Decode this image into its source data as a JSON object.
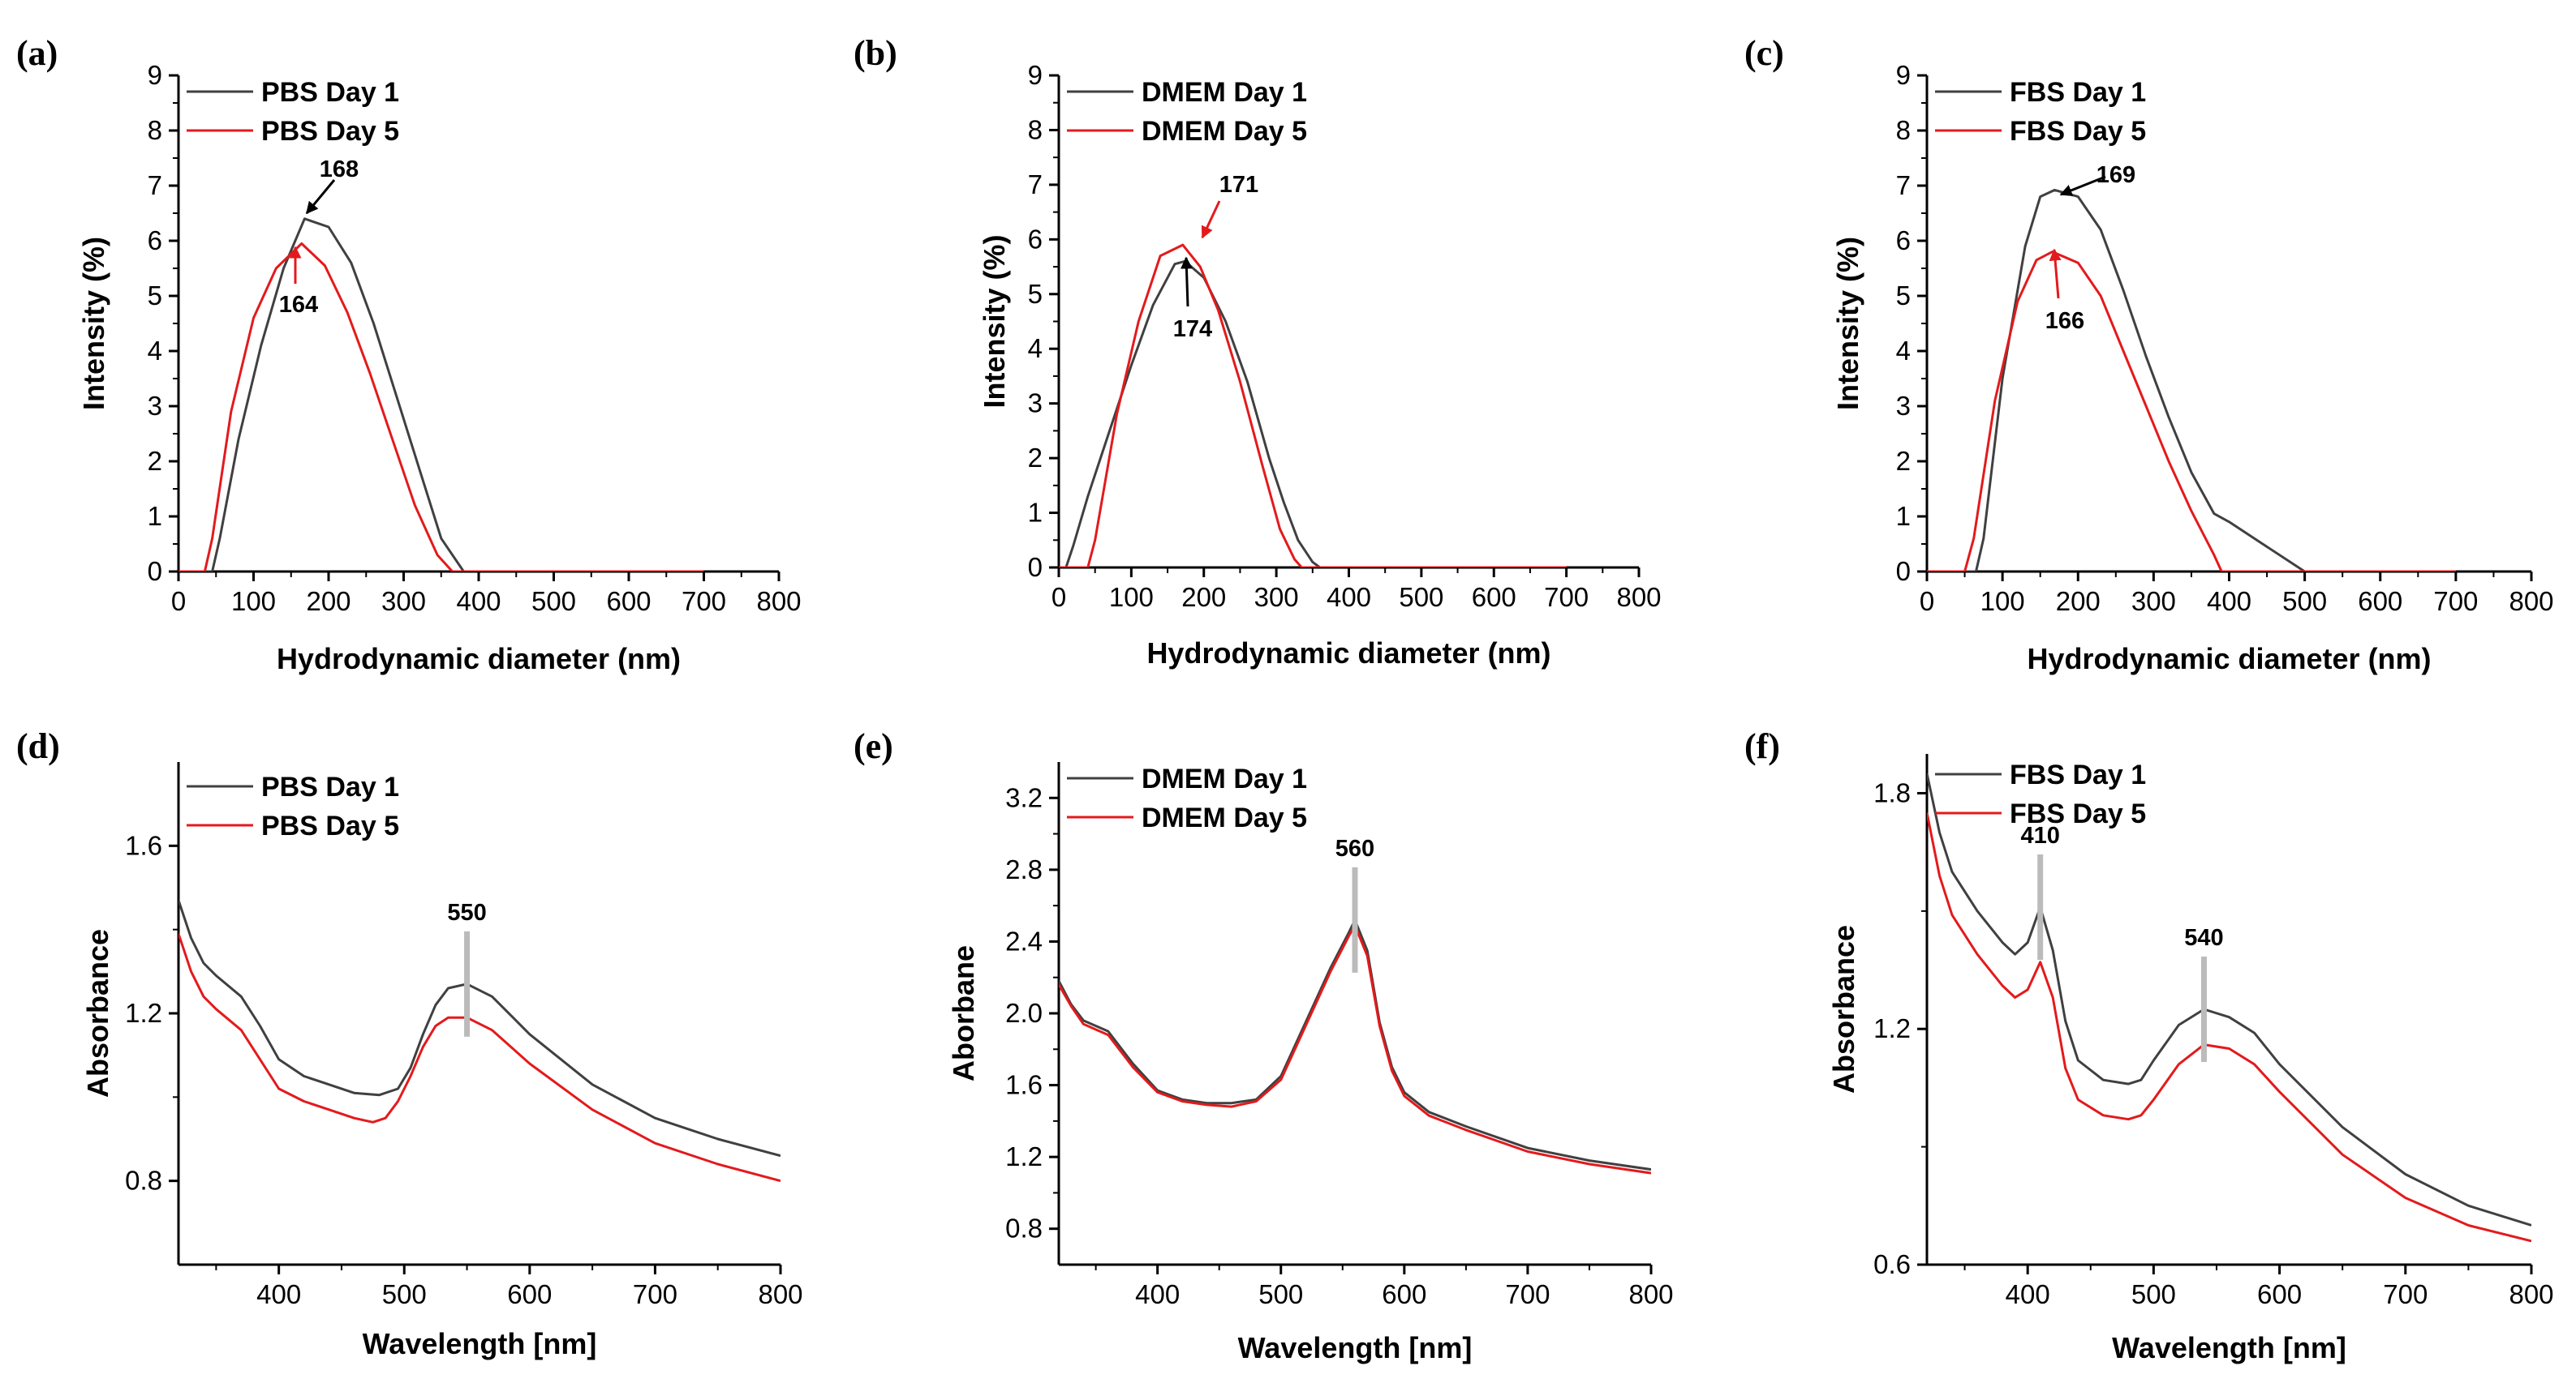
{
  "chart_data": [
    {
      "panel": "(a)",
      "type": "line",
      "xlabel": "Hydrodynamic diameter (nm)",
      "ylabel": "Intensity (%)",
      "xlim": [
        0,
        800
      ],
      "ylim": [
        0,
        9
      ],
      "xticks": [
        "0",
        "100",
        "200",
        "300",
        "400",
        "500",
        "600",
        "700",
        "800"
      ],
      "yticks": [
        "0",
        "1",
        "2",
        "3",
        "4",
        "5",
        "6",
        "7",
        "8",
        "9"
      ],
      "legend": "top-left",
      "series": [
        {
          "name": "PBS Day 1",
          "color": "#404040",
          "x": [
            0,
            45,
            55,
            80,
            110,
            140,
            168,
            200,
            230,
            260,
            290,
            320,
            350,
            380,
            395,
            450,
            550,
            700
          ],
          "y": [
            0,
            0,
            0.6,
            2.4,
            4.1,
            5.5,
            6.4,
            6.25,
            5.6,
            4.5,
            3.2,
            1.9,
            0.6,
            0,
            0,
            0,
            0,
            0
          ]
        },
        {
          "name": "PBS Day 5",
          "color": "#e31a1c",
          "x": [
            0,
            35,
            45,
            70,
            100,
            130,
            164,
            195,
            225,
            255,
            285,
            315,
            345,
            365,
            450,
            550,
            700
          ],
          "y": [
            0,
            0,
            0.6,
            2.9,
            4.6,
            5.5,
            5.95,
            5.55,
            4.7,
            3.6,
            2.4,
            1.2,
            0.3,
            0,
            0,
            0,
            0
          ]
        }
      ],
      "annotations": [
        {
          "text": "168",
          "series": 0,
          "x": 168,
          "y": 6.4
        },
        {
          "text": "164",
          "series": 1,
          "x": 164,
          "y": 5.95
        }
      ]
    },
    {
      "panel": "(b)",
      "type": "line",
      "xlabel": "Hydrodynamic diameter (nm)",
      "ylabel": "Intensity (%)",
      "xlim": [
        0,
        800
      ],
      "ylim": [
        0,
        9
      ],
      "xticks": [
        "0",
        "100",
        "200",
        "300",
        "400",
        "500",
        "600",
        "700",
        "800"
      ],
      "yticks": [
        "0",
        "1",
        "2",
        "3",
        "4",
        "5",
        "6",
        "7",
        "8",
        "9"
      ],
      "legend": "top-left",
      "series": [
        {
          "name": "DMEM Day 1",
          "color": "#404040",
          "x": [
            0,
            10,
            20,
            40,
            70,
            100,
            130,
            160,
            174,
            200,
            230,
            260,
            290,
            310,
            330,
            350,
            360,
            450,
            550,
            700
          ],
          "y": [
            0,
            0,
            0.4,
            1.3,
            2.5,
            3.7,
            4.8,
            5.55,
            5.6,
            5.3,
            4.5,
            3.4,
            2.0,
            1.2,
            0.5,
            0.1,
            0,
            0,
            0,
            0
          ]
        },
        {
          "name": "DMEM Day 5",
          "color": "#e31a1c",
          "x": [
            0,
            40,
            50,
            80,
            110,
            140,
            171,
            195,
            220,
            250,
            280,
            305,
            325,
            335,
            450,
            550,
            700
          ],
          "y": [
            0,
            0,
            0.5,
            2.8,
            4.5,
            5.7,
            5.9,
            5.5,
            4.7,
            3.4,
            1.9,
            0.7,
            0.15,
            0,
            0,
            0,
            0
          ]
        }
      ],
      "annotations": [
        {
          "text": "171",
          "series": 1,
          "x": 171,
          "y": 5.9
        },
        {
          "text": "174",
          "series": 0,
          "x": 174,
          "y": 5.6
        }
      ]
    },
    {
      "panel": "(c)",
      "type": "line",
      "xlabel": "Hydrodynamic diameter (nm)",
      "ylabel": "Intensity (%)",
      "xlim": [
        0,
        800
      ],
      "ylim": [
        0,
        9
      ],
      "xticks": [
        "0",
        "100",
        "200",
        "300",
        "400",
        "500",
        "600",
        "700",
        "800"
      ],
      "yticks": [
        "0",
        "1",
        "2",
        "3",
        "4",
        "5",
        "6",
        "7",
        "8",
        "9"
      ],
      "legend": "top-left",
      "series": [
        {
          "name": "FBS Day 1",
          "color": "#404040",
          "x": [
            0,
            65,
            75,
            100,
            130,
            150,
            169,
            200,
            230,
            260,
            290,
            320,
            350,
            380,
            400,
            500,
            550,
            700
          ],
          "y": [
            0,
            0,
            0.6,
            3.5,
            5.9,
            6.8,
            6.92,
            6.8,
            6.2,
            5.1,
            3.9,
            2.8,
            1.8,
            1.05,
            0.9,
            0,
            0,
            0
          ]
        },
        {
          "name": "FBS Day 5",
          "color": "#e31a1c",
          "x": [
            0,
            50,
            62,
            90,
            120,
            145,
            166,
            200,
            230,
            260,
            290,
            320,
            350,
            380,
            390,
            450,
            550,
            700
          ],
          "y": [
            0,
            0,
            0.6,
            3.1,
            4.9,
            5.65,
            5.8,
            5.6,
            5.0,
            4.0,
            3.0,
            2.0,
            1.1,
            0.3,
            0,
            0,
            0,
            0
          ]
        }
      ],
      "annotations": [
        {
          "text": "169",
          "series": 0,
          "x": 169,
          "y": 6.92
        },
        {
          "text": "166",
          "series": 1,
          "x": 166,
          "y": 5.8
        }
      ]
    },
    {
      "panel": "(d)",
      "type": "line",
      "xlabel": "Wavelength [nm]",
      "ylabel": "Absorbance",
      "xlim": [
        320,
        800
      ],
      "ylim": [
        0.6,
        1.8
      ],
      "xticks": [
        "400",
        "500",
        "600",
        "700",
        "800"
      ],
      "yticks": [
        "0.8",
        "1.2",
        "1.6"
      ],
      "legend": "top-left",
      "series": [
        {
          "name": "PBS Day 1",
          "color": "#404040",
          "x": [
            320,
            330,
            340,
            350,
            370,
            385,
            400,
            420,
            440,
            460,
            480,
            495,
            505,
            515,
            525,
            535,
            550,
            570,
            600,
            650,
            700,
            750,
            800
          ],
          "y": [
            1.47,
            1.38,
            1.32,
            1.29,
            1.24,
            1.17,
            1.09,
            1.05,
            1.03,
            1.01,
            1.005,
            1.02,
            1.07,
            1.15,
            1.22,
            1.26,
            1.27,
            1.24,
            1.15,
            1.03,
            0.95,
            0.9,
            0.86
          ]
        },
        {
          "name": "PBS Day 5",
          "color": "#e31a1c",
          "x": [
            320,
            330,
            340,
            350,
            370,
            385,
            400,
            420,
            440,
            460,
            475,
            485,
            495,
            505,
            515,
            525,
            535,
            550,
            570,
            600,
            650,
            700,
            750,
            800
          ],
          "y": [
            1.39,
            1.3,
            1.24,
            1.21,
            1.16,
            1.09,
            1.02,
            0.99,
            0.97,
            0.95,
            0.94,
            0.95,
            0.99,
            1.05,
            1.12,
            1.17,
            1.19,
            1.19,
            1.16,
            1.08,
            0.97,
            0.89,
            0.84,
            0.8
          ]
        }
      ],
      "annotations": [
        {
          "text": "550",
          "x": 550
        }
      ]
    },
    {
      "panel": "(e)",
      "type": "line",
      "xlabel": "Wavelength [nm]",
      "ylabel": "Aborbane",
      "xlim": [
        320,
        800
      ],
      "ylim": [
        0.6,
        3.4
      ],
      "xticks": [
        "400",
        "500",
        "600",
        "700",
        "800"
      ],
      "yticks": [
        "0.8",
        "1.2",
        "1.6",
        "2.0",
        "2.4",
        "2.8",
        "3.2"
      ],
      "legend": "top-left",
      "series": [
        {
          "name": "DMEM Day 1",
          "color": "#404040",
          "x": [
            320,
            330,
            340,
            360,
            380,
            400,
            420,
            440,
            460,
            480,
            500,
            520,
            540,
            555,
            560,
            570,
            580,
            590,
            600,
            620,
            650,
            700,
            750,
            800
          ],
          "y": [
            2.18,
            2.05,
            1.96,
            1.9,
            1.72,
            1.57,
            1.52,
            1.5,
            1.5,
            1.52,
            1.65,
            1.95,
            2.25,
            2.45,
            2.52,
            2.35,
            1.95,
            1.7,
            1.56,
            1.45,
            1.37,
            1.25,
            1.18,
            1.13
          ]
        },
        {
          "name": "DMEM Day 5",
          "color": "#e31a1c",
          "x": [
            320,
            330,
            340,
            360,
            380,
            400,
            420,
            440,
            460,
            480,
            500,
            520,
            540,
            555,
            560,
            570,
            580,
            590,
            600,
            620,
            650,
            700,
            750,
            800
          ],
          "y": [
            2.16,
            2.04,
            1.94,
            1.88,
            1.7,
            1.56,
            1.51,
            1.49,
            1.48,
            1.51,
            1.63,
            1.93,
            2.23,
            2.43,
            2.49,
            2.32,
            1.93,
            1.68,
            1.54,
            1.43,
            1.35,
            1.23,
            1.16,
            1.11
          ]
        }
      ],
      "annotations": [
        {
          "text": "560",
          "x": 560
        }
      ]
    },
    {
      "panel": "(f)",
      "type": "line",
      "xlabel": "Wavelength [nm]",
      "ylabel": "Absorbance",
      "xlim": [
        320,
        800
      ],
      "ylim": [
        0.6,
        1.9
      ],
      "xticks": [
        "400",
        "500",
        "600",
        "700",
        "800"
      ],
      "yticks": [
        "0.6",
        "1.2",
        "1.8"
      ],
      "legend": "top-left",
      "series": [
        {
          "name": "FBS Day 1",
          "color": "#404040",
          "x": [
            320,
            330,
            340,
            360,
            380,
            390,
            400,
            410,
            420,
            430,
            440,
            460,
            480,
            490,
            500,
            520,
            540,
            560,
            580,
            600,
            650,
            700,
            750,
            800
          ],
          "y": [
            1.85,
            1.7,
            1.6,
            1.5,
            1.42,
            1.39,
            1.42,
            1.51,
            1.4,
            1.22,
            1.12,
            1.07,
            1.06,
            1.07,
            1.12,
            1.21,
            1.25,
            1.23,
            1.19,
            1.11,
            0.95,
            0.83,
            0.75,
            0.7
          ]
        },
        {
          "name": "FBS Day 5",
          "color": "#e31a1c",
          "x": [
            320,
            330,
            340,
            360,
            380,
            390,
            400,
            410,
            420,
            430,
            440,
            460,
            480,
            490,
            500,
            520,
            540,
            560,
            580,
            600,
            650,
            700,
            750,
            800
          ],
          "y": [
            1.75,
            1.59,
            1.49,
            1.39,
            1.31,
            1.28,
            1.3,
            1.37,
            1.28,
            1.1,
            1.02,
            0.98,
            0.97,
            0.98,
            1.02,
            1.11,
            1.16,
            1.15,
            1.11,
            1.04,
            0.88,
            0.77,
            0.7,
            0.66
          ]
        }
      ],
      "annotations": [
        {
          "text": "410",
          "x": 410
        },
        {
          "text": "540",
          "x": 540
        }
      ]
    }
  ]
}
